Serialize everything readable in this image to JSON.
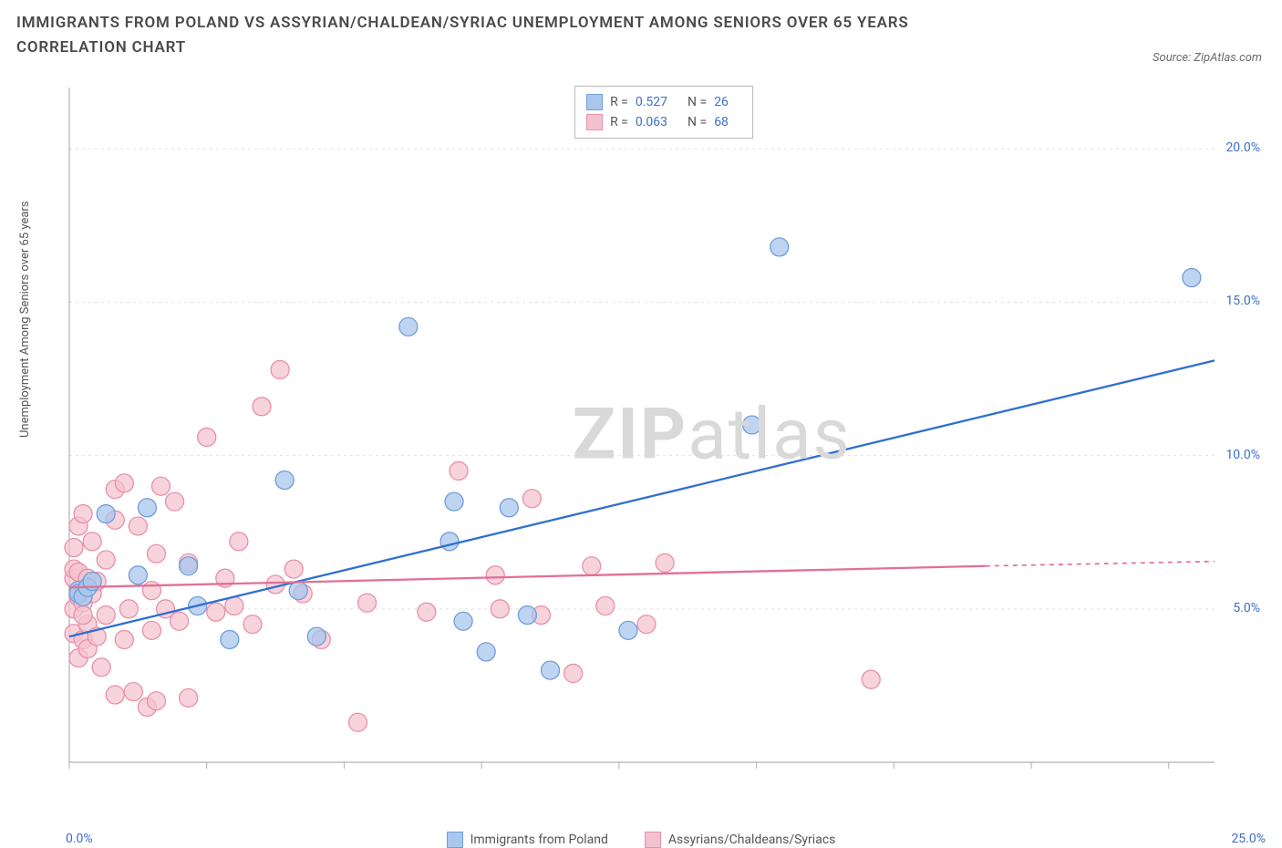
{
  "title": "IMMIGRANTS FROM POLAND VS ASSYRIAN/CHALDEAN/SYRIAC UNEMPLOYMENT AMONG SENIORS OVER 65 YEARS CORRELATION CHART",
  "source": "Source: ZipAtlas.com",
  "watermark_bold": "ZIP",
  "watermark_light": "atlas",
  "y_axis_label": "Unemployment Among Seniors over 65 years",
  "chart": {
    "type": "scatter",
    "background_color": "#ffffff",
    "grid_color": "#e0e0e0",
    "axis_color": "#b0b0b0",
    "xlim": [
      0,
      25
    ],
    "ylim": [
      0,
      22
    ],
    "x_tick_positions": [
      0,
      3,
      6,
      9,
      12,
      15,
      18,
      21,
      24
    ],
    "y_tick_positions": [
      5,
      10,
      15,
      20
    ],
    "y_tick_labels": [
      "5.0%",
      "10.0%",
      "15.0%",
      "20.0%"
    ],
    "x_min_label": "0.0%",
    "x_max_label": "25.0%",
    "label_fontsize": 14,
    "label_color": "#3b6fc9",
    "series": [
      {
        "id": "poland",
        "name": "Immigrants from Poland",
        "marker_color_fill": "#a9c6ec",
        "marker_color_stroke": "#6f9fd8",
        "marker_opacity": 0.75,
        "marker_radius": 10,
        "line_color": "#2f6fd0",
        "line_width": 2.3,
        "R": "0.527",
        "N": "26",
        "trend": {
          "x1": 0,
          "y1": 4.1,
          "x2": 25,
          "y2": 13.1
        },
        "points": [
          [
            0.2,
            5.6
          ],
          [
            0.2,
            5.5
          ],
          [
            0.3,
            5.4
          ],
          [
            0.4,
            5.7
          ],
          [
            0.8,
            8.1
          ],
          [
            1.5,
            6.1
          ],
          [
            1.7,
            8.3
          ],
          [
            2.6,
            6.4
          ],
          [
            2.8,
            5.1
          ],
          [
            3.5,
            4.0
          ],
          [
            4.7,
            9.2
          ],
          [
            5.0,
            5.6
          ],
          [
            5.4,
            4.1
          ],
          [
            7.4,
            14.2
          ],
          [
            8.3,
            7.2
          ],
          [
            8.4,
            8.5
          ],
          [
            8.6,
            4.6
          ],
          [
            9.1,
            3.6
          ],
          [
            9.6,
            8.3
          ],
          [
            10.0,
            4.8
          ],
          [
            10.5,
            3.0
          ],
          [
            12.2,
            4.3
          ],
          [
            14.9,
            11.0
          ],
          [
            15.5,
            16.8
          ],
          [
            24.5,
            15.8
          ],
          [
            0.5,
            5.9
          ]
        ]
      },
      {
        "id": "assyrian",
        "name": "Assyrians/Chaldeans/Syriacs",
        "marker_color_fill": "#f4c2cf",
        "marker_color_stroke": "#e890aa",
        "marker_opacity": 0.72,
        "marker_radius": 10,
        "line_color": "#e36f94",
        "line_width": 2.3,
        "R": "0.063",
        "N": "68",
        "trend": {
          "x1": 0,
          "y1": 5.7,
          "x2": 20,
          "y2": 6.4
        },
        "trend_dashed": {
          "x1": 20,
          "y1": 6.4,
          "x2": 25,
          "y2": 6.55
        },
        "points": [
          [
            0.1,
            4.2
          ],
          [
            0.1,
            5.0
          ],
          [
            0.1,
            6.0
          ],
          [
            0.1,
            6.3
          ],
          [
            0.1,
            7.0
          ],
          [
            0.2,
            3.4
          ],
          [
            0.2,
            5.4
          ],
          [
            0.2,
            6.2
          ],
          [
            0.2,
            7.7
          ],
          [
            0.3,
            4.0
          ],
          [
            0.3,
            5.2
          ],
          [
            0.3,
            8.1
          ],
          [
            0.4,
            3.7
          ],
          [
            0.4,
            4.5
          ],
          [
            0.4,
            6.0
          ],
          [
            0.5,
            5.5
          ],
          [
            0.5,
            7.2
          ],
          [
            0.6,
            4.1
          ],
          [
            0.6,
            5.9
          ],
          [
            0.7,
            3.1
          ],
          [
            0.8,
            4.8
          ],
          [
            0.8,
            6.6
          ],
          [
            1.0,
            2.2
          ],
          [
            1.0,
            7.9
          ],
          [
            1.0,
            8.9
          ],
          [
            1.2,
            4.0
          ],
          [
            1.2,
            9.1
          ],
          [
            1.3,
            5.0
          ],
          [
            1.4,
            2.3
          ],
          [
            1.5,
            7.7
          ],
          [
            1.7,
            1.8
          ],
          [
            1.8,
            4.3
          ],
          [
            1.8,
            5.6
          ],
          [
            1.9,
            6.8
          ],
          [
            1.9,
            2.0
          ],
          [
            2.0,
            9.0
          ],
          [
            2.1,
            5.0
          ],
          [
            2.3,
            8.5
          ],
          [
            2.4,
            4.6
          ],
          [
            2.6,
            2.1
          ],
          [
            2.6,
            6.5
          ],
          [
            3.0,
            10.6
          ],
          [
            3.2,
            4.9
          ],
          [
            3.4,
            6.0
          ],
          [
            3.6,
            5.1
          ],
          [
            3.7,
            7.2
          ],
          [
            4.0,
            4.5
          ],
          [
            4.2,
            11.6
          ],
          [
            4.5,
            5.8
          ],
          [
            4.6,
            12.8
          ],
          [
            4.9,
            6.3
          ],
          [
            5.1,
            5.5
          ],
          [
            5.5,
            4.0
          ],
          [
            6.3,
            1.3
          ],
          [
            6.5,
            5.2
          ],
          [
            7.8,
            4.9
          ],
          [
            8.5,
            9.5
          ],
          [
            9.3,
            6.1
          ],
          [
            9.4,
            5.0
          ],
          [
            10.1,
            8.6
          ],
          [
            10.3,
            4.8
          ],
          [
            11.0,
            2.9
          ],
          [
            11.4,
            6.4
          ],
          [
            11.7,
            5.1
          ],
          [
            12.6,
            4.5
          ],
          [
            13.0,
            6.5
          ],
          [
            17.5,
            2.7
          ],
          [
            0.3,
            4.8
          ]
        ]
      }
    ]
  },
  "legend_top": {
    "r_label": "R =",
    "n_label": "N ="
  },
  "legend_bottom": {
    "poland_label": "Immigrants from Poland",
    "assyrian_label": "Assyrians/Chaldeans/Syriacs"
  }
}
